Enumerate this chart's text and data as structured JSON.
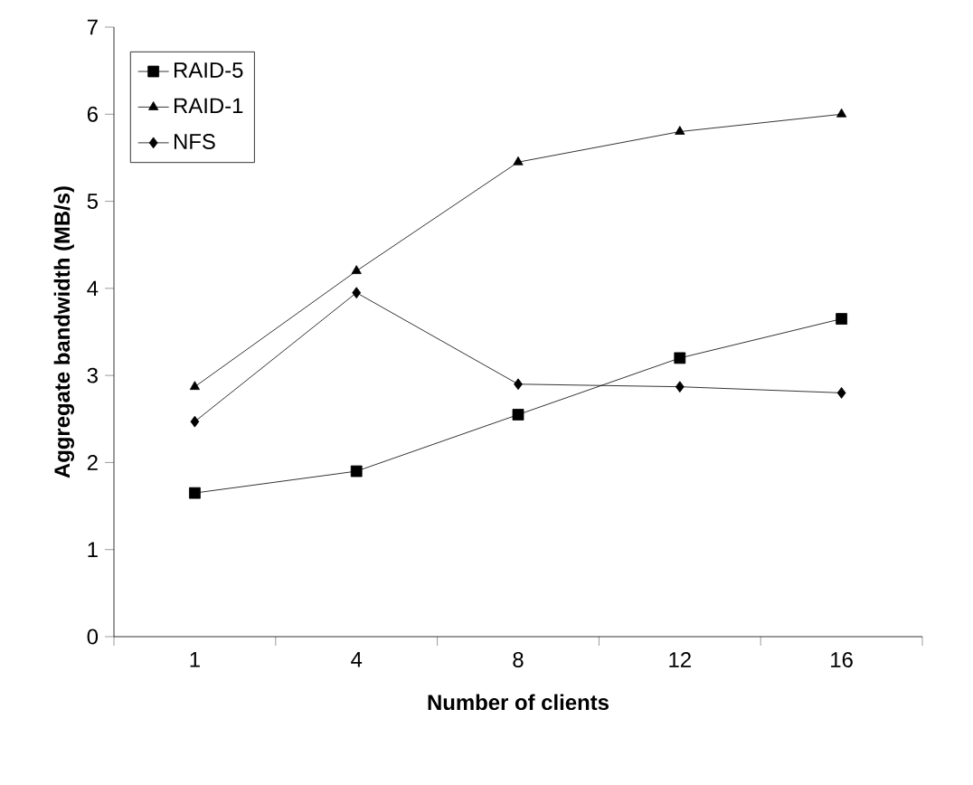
{
  "chart_data": {
    "type": "line",
    "xlabel": "Number of clients",
    "ylabel": "Aggregate bandwidth (MB/s)",
    "categories": [
      "1",
      "4",
      "8",
      "12",
      "16"
    ],
    "series": [
      {
        "name": "RAID-5",
        "color": "#000000",
        "marker": "square",
        "values": [
          1.65,
          1.9,
          2.55,
          3.2,
          3.65
        ]
      },
      {
        "name": "RAID-1",
        "color": "#000000",
        "marker": "triangle",
        "values": [
          2.87,
          4.2,
          5.45,
          5.8,
          6.0
        ]
      },
      {
        "name": "NFS",
        "color": "#000000",
        "marker": "diamond",
        "values": [
          2.47,
          3.95,
          2.9,
          2.87,
          2.8
        ]
      }
    ],
    "ylim": [
      0,
      7
    ],
    "yticks": [
      0,
      1,
      2,
      3,
      4,
      5,
      6,
      7
    ],
    "grid": false,
    "legend": "top left",
    "line_style": "solid"
  }
}
